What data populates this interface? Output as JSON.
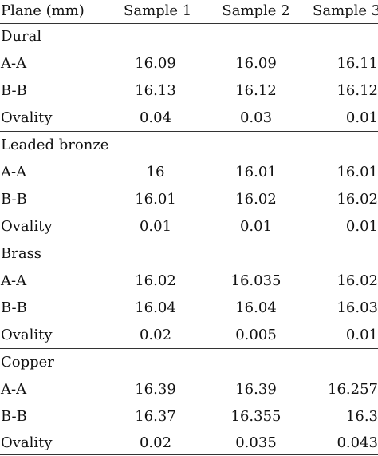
{
  "header": {
    "col0": "Plane (mm)",
    "col1": "Sample 1",
    "col2": "Sample 2",
    "col3": "Sample 3"
  },
  "groups": [
    {
      "name": "Dural",
      "rows": [
        {
          "label": "A-A",
          "s1": "16.09",
          "s2": "16.09",
          "s3": "16.11"
        },
        {
          "label": "B-B",
          "s1": "16.13",
          "s2": "16.12",
          "s3": "16.12"
        },
        {
          "label": "Ovality",
          "s1": "0.04",
          "s2": "0.03",
          "s3": "0.01"
        }
      ]
    },
    {
      "name": "Leaded bronze",
      "rows": [
        {
          "label": "A-A",
          "s1": "16",
          "s2": "16.01",
          "s3": "16.01"
        },
        {
          "label": "B-B",
          "s1": "16.01",
          "s2": "16.02",
          "s3": "16.02"
        },
        {
          "label": "Ovality",
          "s1": "0.01",
          "s2": "0.01",
          "s3": "0.01"
        }
      ]
    },
    {
      "name": "Brass",
      "rows": [
        {
          "label": "A-A",
          "s1": "16.02",
          "s2": "16.035",
          "s3": "16.02"
        },
        {
          "label": "B-B",
          "s1": "16.04",
          "s2": "16.04",
          "s3": "16.03"
        },
        {
          "label": "Ovality",
          "s1": "0.02",
          "s2": "0.005",
          "s3": "0.01"
        }
      ]
    },
    {
      "name": "Copper",
      "rows": [
        {
          "label": "A-A",
          "s1": "16.39",
          "s2": "16.39",
          "s3": "16.257"
        },
        {
          "label": "B-B",
          "s1": "16.37",
          "s2": "16.355",
          "s3": "16.3"
        },
        {
          "label": "Ovality",
          "s1": "0.02",
          "s2": "0.035",
          "s3": "0.043"
        }
      ]
    }
  ]
}
